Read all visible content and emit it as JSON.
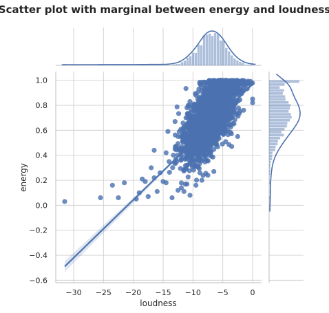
{
  "chart_data": {
    "type": "scatter",
    "title": "Scatter plot with marginal between energy and loudness",
    "xlabel": "loudness",
    "ylabel": "energy",
    "xlim": [
      -33,
      1.5
    ],
    "ylim": [
      -0.62,
      1.07
    ],
    "x_ticks": [
      -30,
      -25,
      -20,
      -15,
      -10,
      -5,
      0
    ],
    "x_tick_labels": [
      "−30",
      "−25",
      "−20",
      "−15",
      "−10",
      "−5",
      "0"
    ],
    "y_ticks": [
      -0.6,
      -0.4,
      -0.2,
      0.0,
      0.2,
      0.4,
      0.6,
      0.8,
      1.0
    ],
    "y_tick_labels": [
      "−0.6",
      "−0.4",
      "−0.2",
      "0.0",
      "0.2",
      "0.4",
      "0.6",
      "0.8",
      "1.0"
    ],
    "grid": true,
    "point_color": "#4c72b0",
    "regression": {
      "x": [
        -31.5,
        0
      ],
      "y": [
        -0.49,
        0.97
      ]
    },
    "outliers": [
      [
        -31.5,
        0.03
      ],
      [
        -25.5,
        0.06
      ],
      [
        -23.5,
        0.16
      ],
      [
        -22.5,
        0.06
      ],
      [
        -21.5,
        0.18
      ],
      [
        -19.5,
        0.05
      ],
      [
        -19.0,
        0.1
      ],
      [
        -18.5,
        0.21
      ],
      [
        -18.0,
        0.19
      ],
      [
        -17.5,
        0.07
      ],
      [
        -17.0,
        0.3
      ],
      [
        -16.5,
        0.22
      ],
      [
        -16.0,
        0.11
      ],
      [
        -15.5,
        0.26
      ],
      [
        -15.0,
        0.19
      ],
      [
        -14.5,
        0.42
      ],
      [
        -14.5,
        0.18
      ],
      [
        -14.0,
        0.35
      ],
      [
        -14.2,
        0.59
      ],
      [
        -13.0,
        0.67
      ],
      [
        -13.5,
        0.06
      ],
      [
        -12.5,
        0.12
      ],
      [
        -11.5,
        0.11
      ],
      [
        -11.0,
        0.17
      ],
      [
        -10.5,
        0.08
      ],
      [
        -9.5,
        0.16
      ],
      [
        -12.5,
        0.55
      ],
      [
        -11.5,
        0.62
      ],
      [
        -11.0,
        0.78
      ],
      [
        -10.5,
        0.83
      ],
      [
        -9.5,
        0.88
      ],
      [
        -13.0,
        0.45
      ],
      [
        -12.0,
        0.36
      ],
      [
        -8.5,
        0.2
      ],
      [
        -7.5,
        0.24
      ],
      [
        -6.5,
        0.27
      ],
      [
        -3.5,
        0.47
      ],
      [
        -2.5,
        0.55
      ],
      [
        -1.5,
        0.76
      ],
      [
        0.0,
        0.82
      ],
      [
        0.0,
        0.85
      ],
      [
        -4.5,
        0.97
      ],
      [
        -7.0,
        0.95
      ],
      [
        -9.0,
        0.93
      ],
      [
        -16.5,
        0.44
      ]
    ],
    "seed": 7,
    "cloud_n": 2600,
    "cloud_center": [
      -6.8,
      0.74
    ],
    "cloud_sd": [
      2.2,
      0.13
    ],
    "top_hist_bins": 70,
    "right_hist_bins": 42
  }
}
